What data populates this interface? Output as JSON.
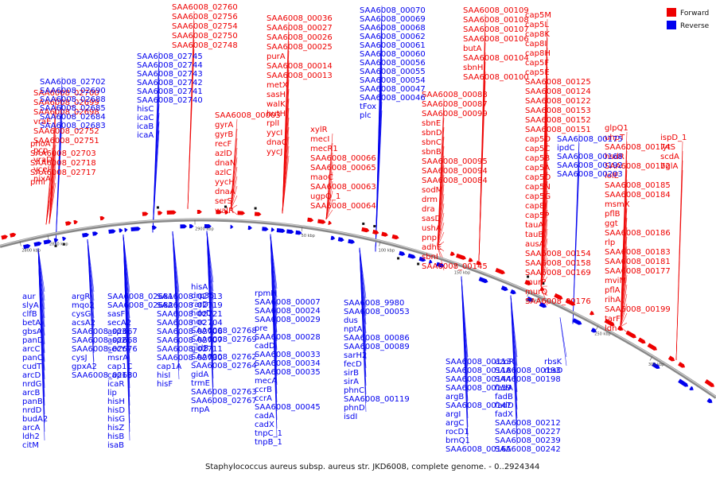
{
  "caption": "Staphylococcus aureus subsp. aureus str. JKD6008, complete genome. - 0..2924344",
  "legend": {
    "items": [
      {
        "label": "Forward",
        "color": "#ee0000"
      },
      {
        "label": "Reverse",
        "color": "#0000ee"
      }
    ]
  },
  "colors": {
    "forward": "#ee0000",
    "reverse": "#0000ee",
    "backbone": "#777777"
  },
  "ticks": [
    "2900 kbp",
    "2850 kbp",
    "2800 kbp",
    "50 kbp",
    "100 kbp",
    "150 kbp",
    "200 kbp",
    "250 kbp",
    "300 kbp"
  ],
  "forward_labels": [
    "SAA6008_02760",
    "SAA6008_02756",
    "SAA6008_02754",
    "SAA6008_02750",
    "SAA6008_02748",
    "SAA6008_00036",
    "SAA6008_00027",
    "SAA6008_00026",
    "SAA6008_00025",
    "purA",
    "SAA6008_00014",
    "SAA6008_00013",
    "metX",
    "sasH",
    "walK",
    "hutH",
    "rplI",
    "yycI",
    "dnaC",
    "yycJ",
    "SAA6008_00003",
    "gyrA",
    "gyrB",
    "recF",
    "azlD",
    "dnaN",
    "azlC",
    "yycH",
    "dnaA",
    "serS",
    "walR",
    "SAA6008_02700",
    "SAA6008_02699",
    "SAA6008_02698",
    "vraE",
    "SAA6008_02752",
    "SAA6008_02751",
    "pcp",
    "vraD",
    "vceI",
    "nixA",
    "phoA",
    "SAA6008_02703",
    "SAA6008_02718",
    "SAA6008_02717",
    "pmi",
    "xylR",
    "mecI",
    "mecR1",
    "SAA6008_00066",
    "SAA6008_00065",
    "maoC",
    "SAA6008_00063",
    "ugpQ_1",
    "SAA6008_00064",
    "SAA6008_00109",
    "SAA6008_00108",
    "SAA6008_00107",
    "SAA6008_00106",
    "butA",
    "SAA6008_00104",
    "sbnH",
    "SAA6008_00100",
    "SAA6008_00088",
    "SAA6008_00087",
    "SAA6008_00099",
    "sbnE",
    "sbnD",
    "sbnC",
    "sbnB",
    "SAA6008_00095",
    "SAA6008_00094",
    "SAA6008_00084",
    "sodM",
    "drm",
    "dra",
    "sasD",
    "ushA",
    "pnp",
    "adhE",
    "sbnI",
    "SAA6008_00145",
    "cap5M",
    "cap5L",
    "cap8K",
    "cap8I",
    "cap8H",
    "cap5F",
    "cap5E",
    "SAA6008_00125",
    "SAA6008_00124",
    "SAA6008_00122",
    "SAA6008_00153",
    "SAA6008_00152",
    "SAA6008_00151",
    "cap5D",
    "cap5C",
    "cap5B",
    "cap5A",
    "cap5O",
    "cap5N",
    "cap5G",
    "cap8J",
    "cap5P",
    "tauA",
    "tauB",
    "ausA",
    "SAA6008_00154",
    "SAA6008_00158",
    "SAA6008_00169",
    "murP",
    "murQ",
    "SAA6008_00176",
    "glpQ1",
    "uhpT",
    "SAA6008_00174",
    "hsdR",
    "SAA6008_00172",
    "iolE",
    "SAA6008_00185",
    "SAA6008_00184",
    "msmX",
    "pflB",
    "ggt",
    "SAA6008_00186",
    "rlp",
    "SAA6008_00183",
    "SAA6008_00181",
    "SAA6008_00177",
    "mviM",
    "pflA",
    "rihA",
    "SAA6008_00199",
    "tarF",
    "ldh",
    "ispD_1",
    "lytS",
    "scdA",
    "bglA"
  ],
  "reverse_labels": [
    "SAA6008_00070",
    "SAA6008_00069",
    "SAA6008_00068",
    "SAA6008_00062",
    "SAA6008_00061",
    "SAA6008_00060",
    "SAA6008_00056",
    "SAA6008_00055",
    "SAA6008_00054",
    "SAA6008_00047",
    "SAA6008_00046",
    "tFox",
    "plc",
    "SAA6008_02745",
    "SAA6008_02744",
    "SAA6008_02743",
    "SAA6008_02742",
    "SAA6008_02741",
    "SAA6008_02740",
    "hisC",
    "icaC",
    "icaB",
    "icaA",
    "SAA6008_02702",
    "SAA6008_02690",
    "SAA6008_02688",
    "SAA6008_02685",
    "SAA6008_02684",
    "SAA6008_02683",
    "SAA6008_00175",
    "ipdC",
    "SAA6008_00168",
    "SAA6008_00192",
    "SAA6008_00203",
    "aur",
    "slyA",
    "clfB",
    "betA",
    "gbsA",
    "panD",
    "arcC",
    "panC",
    "cudT",
    "arcD",
    "nrdG",
    "arcB",
    "panB",
    "nrdD",
    "budA2",
    "arcA",
    "ldh2",
    "citM",
    "argR",
    "mqo2",
    "cysG",
    "acsA2",
    "SAA6008_02667",
    "SAA6008_02668",
    "SAA6008_02676",
    "cysJ",
    "gpxA2",
    "SAA6008_02680",
    "SAA6008_02681",
    "SAA6008_02682",
    "sasF",
    "secA2",
    "asp3",
    "asp2",
    "secY",
    "msrA",
    "cap1C",
    "cap1B",
    "icaR",
    "lip",
    "hisH",
    "hisD",
    "hisG",
    "hisZ",
    "hisB",
    "isaB",
    "SAA6008_02713",
    "SAA6008_02719",
    "SAA6008_02721",
    "SAA6008_02704",
    "SAA6008_02706",
    "SAA6008_02707",
    "SAA6008_02711",
    "SAA6008_02730",
    "cap1A",
    "hisI",
    "hisF",
    "hisA",
    "drp35",
    "rarD",
    "hdeD",
    "noc",
    "SAA6008_02768",
    "SAA6008_02769",
    "gidB",
    "SAA6008_02762",
    "SAA6008_02764",
    "gidA",
    "trmE",
    "SAA6008_02763",
    "SAA6008_02767",
    "rnpA",
    "rpmH",
    "SAA6008_00007",
    "SAA6008_00024",
    "SAA6008_00029",
    "pre",
    "SAA6008_00028",
    "cadD",
    "SAA6008_00033",
    "SAA6008_00034",
    "SAA6008_00035",
    "mecA",
    "ccrB",
    "ccrA",
    "SAA6008_00045",
    "cadA",
    "cadX",
    "tnpC_1",
    "tnpB_1",
    "SAA6008_9980",
    "SAA6008_00053",
    "dus",
    "nptA",
    "SAA6008_00086",
    "SAA6008_00089",
    "sarH2",
    "fecD",
    "sirB",
    "sirA",
    "phnC",
    "SAA6008_00119",
    "phnD",
    "isdI",
    "SAA6008_00113",
    "SAA6008_00118",
    "SAA6008_00144",
    "SAA6008_00159",
    "argB",
    "SAA6008_00147",
    "argI",
    "argC",
    "rocD1",
    "brnQ1",
    "SAA6008_00165",
    "azoR",
    "SAA6008_00193",
    "SAA6008_00198",
    "fadA",
    "fadB",
    "fadD",
    "fadX",
    "SAA6008_00212",
    "SAA6008_00227",
    "SAA6008_00239",
    "SAA6008_00242",
    "rbsK",
    "rbsD",
    "rbsU",
    "sssA"
  ]
}
